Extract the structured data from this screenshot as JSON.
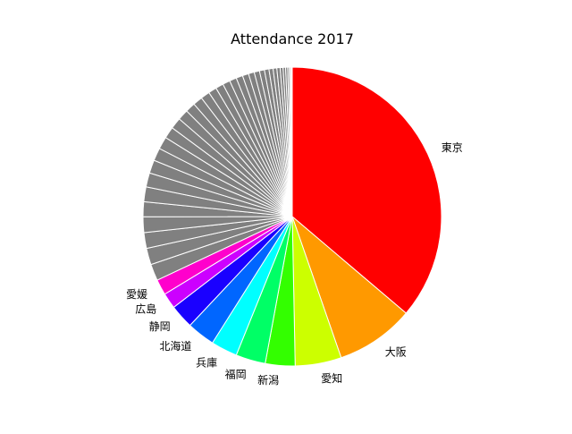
{
  "chart_data": {
    "type": "pie",
    "title": "Attendance 2017",
    "start_angle_deg": 90,
    "direction": "clockwise",
    "wedge_edge_color": "#ffffff",
    "labeled_slices": [
      {
        "label": "東京",
        "value": 40.5,
        "color": "#ff0000"
      },
      {
        "label": "大阪",
        "value": 9.5,
        "color": "#ff9900"
      },
      {
        "label": "愛知",
        "value": 5.6,
        "color": "#ccff00"
      },
      {
        "label": "新潟",
        "value": 3.6,
        "color": "#33ff00"
      },
      {
        "label": "福岡",
        "value": 3.6,
        "color": "#00ff66"
      },
      {
        "label": "兵庫",
        "value": 3.2,
        "color": "#00ffff"
      },
      {
        "label": "北海道",
        "value": 3.4,
        "color": "#0066ff"
      },
      {
        "label": "静岡",
        "value": 2.9,
        "color": "#1a00ff"
      },
      {
        "label": "広島",
        "value": 1.9,
        "color": "#cc00ff"
      },
      {
        "label": "愛媛",
        "value": 1.9,
        "color": "#ff00cc"
      }
    ],
    "other_slices": {
      "color": "#808080",
      "values": [
        2.0,
        2.0,
        1.9,
        1.9,
        1.8,
        1.8,
        1.7,
        1.6,
        1.55,
        1.5,
        1.4,
        1.35,
        1.3,
        1.2,
        1.15,
        1.1,
        1.0,
        0.95,
        0.9,
        0.85,
        0.8,
        0.75,
        0.7,
        0.65,
        0.6,
        0.55,
        0.5,
        0.45,
        0.4,
        0.35,
        0.3,
        0.25,
        0.2,
        0.15,
        0.1,
        0.06,
        0.04
      ]
    }
  }
}
